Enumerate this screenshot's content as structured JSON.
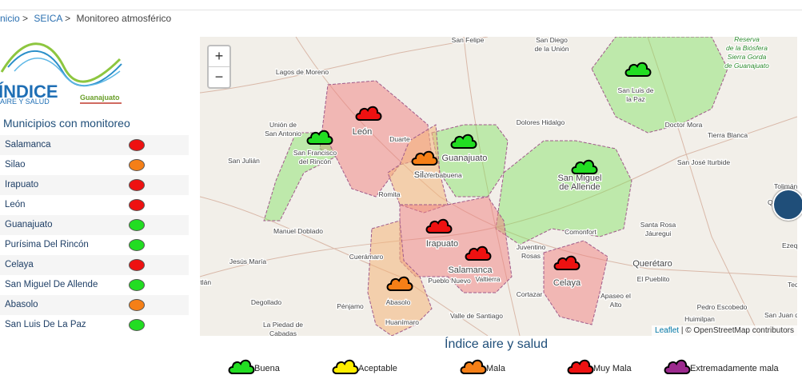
{
  "breadcrumb": [
    "nicio",
    ">",
    "SEICA",
    ">",
    "Monitoreo atmosférico"
  ],
  "logo": {
    "title": "ÍNDICE",
    "subtitle": "AIRE Y SALUD",
    "region": "Guanajuato"
  },
  "sidebar": {
    "title": "Municipios con monitoreo",
    "municipalities": [
      {
        "name": "Salamanca",
        "color": "#ee1111"
      },
      {
        "name": "Silao",
        "color": "#f57f17"
      },
      {
        "name": "Irapuato",
        "color": "#ee1111"
      },
      {
        "name": "León",
        "color": "#ee1111"
      },
      {
        "name": "Guanajuato",
        "color": "#22dd22"
      },
      {
        "name": "Purísima Del Rincón",
        "color": "#22dd22"
      },
      {
        "name": "Celaya",
        "color": "#ee1111"
      },
      {
        "name": "San Miguel De Allende",
        "color": "#22dd22"
      },
      {
        "name": "Abasolo",
        "color": "#f57f17"
      },
      {
        "name": "San Luis De La Paz",
        "color": "#22dd22"
      }
    ]
  },
  "map": {
    "zoom_in": "+",
    "zoom_out": "−",
    "labels": [
      "San Felipe",
      "San Diego",
      "de la Unión",
      "Reserva",
      "de la Biósfera",
      "Sierra Gorda",
      "de Guanajuato",
      "Lagos de Moreno",
      "San Luis de",
      "la Paz",
      "Unión de",
      "San Antonio",
      "León",
      "Duarte",
      "Guanajuato",
      "Dolores Hidalgo",
      "Doctor Mora",
      "Tierra Blanca",
      "San Francisco",
      "del Rincón",
      "Silao",
      "Yerbabuena",
      "San José Iturbide",
      "San Julián",
      "Romita",
      "San Miguel",
      "de Allende",
      "Tolimán",
      "Querétan",
      "Manuel Doblado",
      "Comonfort",
      "Santa Rosa",
      "Jáuregui",
      "Irapuato",
      "Juventino",
      "Rosas",
      "Jesús María",
      "Cuerámaro",
      "Salamanca",
      "Valtierra",
      "Celaya",
      "Querétaro",
      "Ezequiel Mor",
      "Pueblo Nuevo",
      "Apaseo el",
      "Alto",
      "El Pueblito",
      "Tequisquiap",
      "Degollado",
      "Pénjamo",
      "Abasolo",
      "Cortazar",
      "Huanímaro",
      "Valle de Santiago",
      "Pedro Escobedo",
      "La Piedad de",
      "Cabadas",
      "Huimilpan",
      "San Juan del",
      "Ayotlán"
    ],
    "attribution": {
      "leaflet": "Leaflet",
      "rest": "| © OpenStreetMap contributors"
    }
  },
  "legend": {
    "title": "Índice aire y salud",
    "items": [
      {
        "label": "Buena",
        "color": "#22dd22"
      },
      {
        "label": "Aceptable",
        "color": "#ffee00"
      },
      {
        "label": "Mala",
        "color": "#f57f17"
      },
      {
        "label": "Muy Mala",
        "color": "#ee1111"
      },
      {
        "label": "Extremadamente mala",
        "color": "#9c2a8e"
      }
    ]
  }
}
